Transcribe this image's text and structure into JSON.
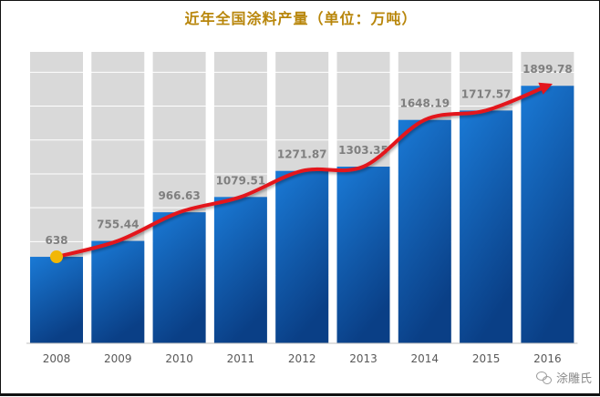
{
  "chart_data": {
    "type": "bar",
    "title": "近年全国涂料产量（单位：万吨）",
    "categories": [
      "2008",
      "2009",
      "2010",
      "2011",
      "2012",
      "2013",
      "2014",
      "2015",
      "2016"
    ],
    "series": [
      {
        "values": [
          638,
          755.44,
          966.63,
          1079.51,
          1271.87,
          1303.35,
          1648.19,
          1717.57,
          1899.78
        ]
      }
    ],
    "value_labels": [
      "638",
      "755.44",
      "966.63",
      "1079.51",
      "1271.87",
      "1303.35",
      "1648.19",
      "1717.57",
      "1899.78"
    ],
    "ylim": [
      0,
      2150
    ],
    "grid": true,
    "trend_line": true,
    "colors": {
      "bar_top": "#1a7ad6",
      "bar_bottom": "#0a3f86",
      "bar_background": "#d9d9d9",
      "trend": "#e3141b",
      "start_marker": "#f2b705",
      "title": "#b8860b"
    }
  },
  "watermark": {
    "text": "涂雕氏",
    "icon": "wechat-icon"
  }
}
